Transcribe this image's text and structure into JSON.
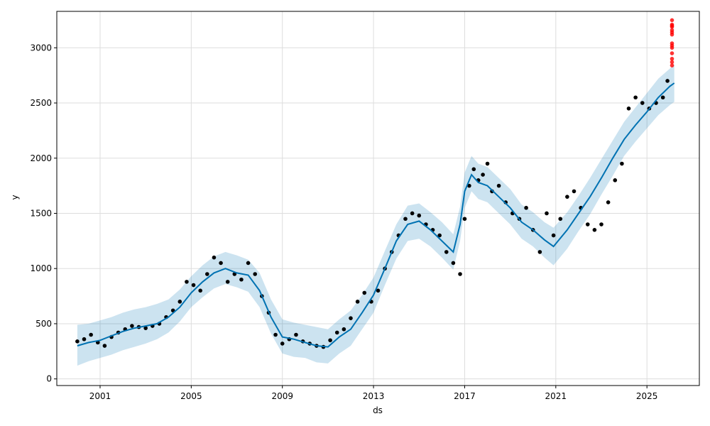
{
  "chart_data": {
    "type": "line",
    "title": "",
    "xlabel": "ds",
    "ylabel": "y",
    "xlim": [
      1999.1,
      2027.3
    ],
    "ylim": [
      -60,
      3330
    ],
    "x_ticks": [
      {
        "value": 2001,
        "label": "2001"
      },
      {
        "value": 2005,
        "label": "2005"
      },
      {
        "value": 2009,
        "label": "2009"
      },
      {
        "value": 2013,
        "label": "2013"
      },
      {
        "value": 2017,
        "label": "2017"
      },
      {
        "value": 2021,
        "label": "2021"
      },
      {
        "value": 2025,
        "label": "2025"
      }
    ],
    "y_ticks": [
      {
        "value": 0,
        "label": "0"
      },
      {
        "value": 500,
        "label": "500"
      },
      {
        "value": 1000,
        "label": "1000"
      },
      {
        "value": 1500,
        "label": "1500"
      },
      {
        "value": 2000,
        "label": "2000"
      },
      {
        "value": 2500,
        "label": "2500"
      },
      {
        "value": 3000,
        "label": "3000"
      }
    ],
    "grid": true,
    "colors": {
      "forecast_line": "#0072B2",
      "interval_fill": "#0072B2",
      "observed_points": "#000000",
      "highlight_points": "#ff0000"
    },
    "series": [
      {
        "kind": "forecast",
        "x": [
          2000.0,
          2000.5,
          2001.0,
          2001.5,
          2002.0,
          2002.5,
          2003.0,
          2003.5,
          2004.0,
          2004.5,
          2005.0,
          2005.5,
          2006.0,
          2006.5,
          2007.0,
          2007.5,
          2008.0,
          2008.5,
          2009.0,
          2009.5,
          2010.0,
          2010.5,
          2011.0,
          2011.5,
          2012.0,
          2012.5,
          2013.0,
          2013.5,
          2014.0,
          2014.5,
          2015.0,
          2015.5,
          2016.0,
          2016.5,
          2016.8,
          2017.0,
          2017.3,
          2017.6,
          2018.0,
          2018.5,
          2019.0,
          2019.5,
          2020.0,
          2020.5,
          2020.9,
          2021.5,
          2022.0,
          2022.5,
          2023.0,
          2023.5,
          2024.0,
          2024.5,
          2025.0,
          2025.5,
          2026.0,
          2026.2
        ],
        "yhat": [
          300,
          330,
          350,
          390,
          430,
          460,
          480,
          500,
          560,
          650,
          780,
          880,
          960,
          1000,
          960,
          940,
          800,
          560,
          380,
          360,
          330,
          300,
          290,
          380,
          450,
          600,
          760,
          1000,
          1250,
          1400,
          1430,
          1350,
          1250,
          1150,
          1400,
          1700,
          1850,
          1780,
          1750,
          1650,
          1550,
          1420,
          1350,
          1260,
          1200,
          1350,
          1500,
          1650,
          1820,
          2000,
          2170,
          2300,
          2420,
          2550,
          2650,
          2680
        ],
        "lower": [
          120,
          160,
          190,
          220,
          260,
          290,
          320,
          360,
          420,
          520,
          650,
          740,
          820,
          860,
          830,
          790,
          650,
          410,
          230,
          200,
          190,
          150,
          140,
          230,
          300,
          450,
          600,
          850,
          1090,
          1250,
          1270,
          1200,
          1100,
          990,
          1250,
          1550,
          1700,
          1630,
          1600,
          1500,
          1400,
          1270,
          1200,
          1100,
          1030,
          1180,
          1340,
          1490,
          1670,
          1840,
          2020,
          2150,
          2270,
          2390,
          2480,
          2510
        ],
        "upper": [
          490,
          500,
          530,
          560,
          600,
          630,
          650,
          680,
          720,
          810,
          930,
          1030,
          1110,
          1150,
          1120,
          1080,
          960,
          720,
          540,
          510,
          490,
          470,
          450,
          540,
          620,
          760,
          920,
          1160,
          1400,
          1570,
          1590,
          1510,
          1420,
          1310,
          1560,
          1870,
          2020,
          1950,
          1920,
          1820,
          1720,
          1580,
          1510,
          1420,
          1370,
          1510,
          1660,
          1820,
          1990,
          2160,
          2330,
          2460,
          2590,
          2720,
          2810,
          2850
        ]
      },
      {
        "kind": "observed",
        "x": [
          2000.0,
          2000.3,
          2000.6,
          2000.9,
          2001.2,
          2001.5,
          2001.8,
          2002.1,
          2002.4,
          2002.7,
          2003.0,
          2003.3,
          2003.6,
          2003.9,
          2004.2,
          2004.5,
          2004.8,
          2005.1,
          2005.4,
          2005.7,
          2006.0,
          2006.3,
          2006.6,
          2006.9,
          2007.2,
          2007.5,
          2007.8,
          2008.1,
          2008.4,
          2008.7,
          2009.0,
          2009.3,
          2009.6,
          2009.9,
          2010.2,
          2010.5,
          2010.8,
          2011.1,
          2011.4,
          2011.7,
          2012.0,
          2012.3,
          2012.6,
          2012.9,
          2013.2,
          2013.5,
          2013.8,
          2014.1,
          2014.4,
          2014.7,
          2015.0,
          2015.3,
          2015.6,
          2015.9,
          2016.2,
          2016.5,
          2016.8,
          2017.0,
          2017.2,
          2017.4,
          2017.6,
          2017.8,
          2018.0,
          2018.2,
          2018.5,
          2018.8,
          2019.1,
          2019.4,
          2019.7,
          2020.0,
          2020.3,
          2020.6,
          2020.9,
          2021.2,
          2021.5,
          2021.8,
          2022.1,
          2022.4,
          2022.7,
          2023.0,
          2023.3,
          2023.6,
          2023.9,
          2024.2,
          2024.5,
          2024.8,
          2025.1,
          2025.4,
          2025.7,
          2025.9
        ],
        "y": [
          340,
          360,
          400,
          330,
          300,
          380,
          420,
          450,
          480,
          470,
          460,
          480,
          500,
          560,
          620,
          700,
          880,
          850,
          800,
          950,
          1100,
          1050,
          880,
          950,
          900,
          1050,
          950,
          750,
          600,
          400,
          320,
          360,
          400,
          340,
          320,
          300,
          290,
          350,
          420,
          450,
          550,
          700,
          780,
          700,
          800,
          1000,
          1150,
          1300,
          1450,
          1500,
          1480,
          1400,
          1350,
          1300,
          1150,
          1050,
          950,
          1450,
          1750,
          1900,
          1800,
          1850,
          1950,
          1700,
          1750,
          1600,
          1500,
          1450,
          1550,
          1350,
          1150,
          1500,
          1300,
          1450,
          1650,
          1700,
          1550,
          1400,
          1350,
          1400,
          1600,
          1800,
          1950,
          2450,
          2550,
          2500,
          2450,
          2500,
          2550,
          2700
        ]
      },
      {
        "kind": "highlight",
        "x": [
          2026.1,
          2026.1,
          2026.1,
          2026.1,
          2026.1,
          2026.1,
          2026.1,
          2026.1,
          2026.1,
          2026.1,
          2026.1,
          2026.1,
          2026.1,
          2026.1
        ],
        "y": [
          2840,
          2870,
          2900,
          2950,
          3000,
          3020,
          3040,
          3120,
          3140,
          3160,
          3190,
          3200,
          3210,
          3250
        ]
      }
    ]
  }
}
